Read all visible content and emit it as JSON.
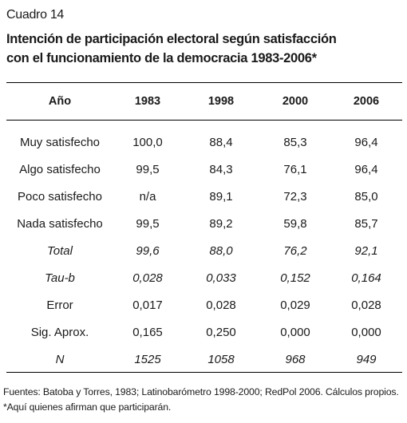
{
  "document": {
    "label": "Cuadro 14",
    "title_line1": "Intención de participación electoral según satisfacción",
    "title_line2": "con el funcionamiento  de la democracia  1983-2006*"
  },
  "table": {
    "header": [
      "Año",
      "1983",
      "1998",
      "2000",
      "2006"
    ],
    "rows": [
      {
        "label": "Muy satisfecho",
        "values": [
          "100,0",
          "88,4",
          "85,3",
          "96,4"
        ],
        "italic": false
      },
      {
        "label": "Algo satisfecho",
        "values": [
          "99,5",
          "84,3",
          "76,1",
          "96,4"
        ],
        "italic": false
      },
      {
        "label": "Poco satisfecho",
        "values": [
          "n/a",
          "89,1",
          "72,3",
          "85,0"
        ],
        "italic": false
      },
      {
        "label": "Nada satisfecho",
        "values": [
          "99,5",
          "89,2",
          "59,8",
          "85,7"
        ],
        "italic": false
      },
      {
        "label": "Total",
        "values": [
          "99,6",
          "88,0",
          "76,2",
          "92,1"
        ],
        "italic": true
      },
      {
        "label": "Tau-b",
        "values": [
          "0,028",
          "0,033",
          "0,152",
          "0,164"
        ],
        "italic": true
      },
      {
        "label": "Error",
        "values": [
          "0,017",
          "0,028",
          "0,029",
          "0,028"
        ],
        "italic": false
      },
      {
        "label": "Sig. Aprox.",
        "values": [
          "0,165",
          "0,250",
          "0,000",
          "0,000"
        ],
        "italic": false
      },
      {
        "label": "N",
        "values": [
          "1525",
          "1058",
          "968",
          "949"
        ],
        "italic": true
      }
    ]
  },
  "footer": {
    "sources": "Fuentes: Batoba y Torres, 1983; Latinobarómetro 1998-2000; RedPol 2006. Cálculos propios.",
    "note": "*Aquí quienes afirman que participarán."
  }
}
